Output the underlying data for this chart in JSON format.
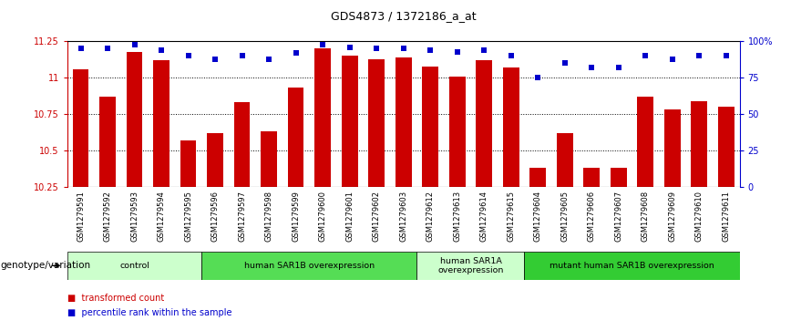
{
  "title": "GDS4873 / 1372186_a_at",
  "samples": [
    "GSM1279591",
    "GSM1279592",
    "GSM1279593",
    "GSM1279594",
    "GSM1279595",
    "GSM1279596",
    "GSM1279597",
    "GSM1279598",
    "GSM1279599",
    "GSM1279600",
    "GSM1279601",
    "GSM1279602",
    "GSM1279603",
    "GSM1279612",
    "GSM1279613",
    "GSM1279614",
    "GSM1279615",
    "GSM1279604",
    "GSM1279605",
    "GSM1279606",
    "GSM1279607",
    "GSM1279608",
    "GSM1279609",
    "GSM1279610",
    "GSM1279611"
  ],
  "bar_values": [
    11.06,
    10.87,
    11.18,
    11.12,
    10.57,
    10.62,
    10.83,
    10.63,
    10.93,
    11.2,
    11.15,
    11.13,
    11.14,
    11.08,
    11.01,
    11.12,
    11.07,
    10.38,
    10.62,
    10.38,
    10.38,
    10.87,
    10.78,
    10.84,
    10.8
  ],
  "percentile_values": [
    95,
    95,
    98,
    94,
    90,
    88,
    90,
    88,
    92,
    98,
    96,
    95,
    95,
    94,
    93,
    94,
    90,
    75,
    85,
    82,
    82,
    90,
    88,
    90,
    90
  ],
  "ymin": 10.25,
  "ymax": 11.25,
  "yticks": [
    10.25,
    10.5,
    10.75,
    11.0,
    11.25
  ],
  "ytick_labels": [
    "10.25",
    "10.5",
    "10.75",
    "11",
    "11.25"
  ],
  "right_yticks": [
    0,
    25,
    50,
    75,
    100
  ],
  "right_ytick_labels": [
    "0",
    "25",
    "50",
    "75",
    "100%"
  ],
  "bar_color": "#cc0000",
  "dot_color": "#0000cc",
  "groups": [
    {
      "label": "control",
      "start": 0,
      "end": 5,
      "color": "#ccffcc"
    },
    {
      "label": "human SAR1B overexpression",
      "start": 5,
      "end": 13,
      "color": "#55dd55"
    },
    {
      "label": "human SAR1A\noverexpression",
      "start": 13,
      "end": 17,
      "color": "#ccffcc"
    },
    {
      "label": "mutant human SAR1B overexpression",
      "start": 17,
      "end": 25,
      "color": "#33cc33"
    }
  ],
  "xlabel_genotype": "genotype/variation",
  "left_axis_color": "#cc0000",
  "right_axis_color": "#0000cc",
  "tick_area_color": "#cccccc",
  "bg_color": "#ffffff"
}
